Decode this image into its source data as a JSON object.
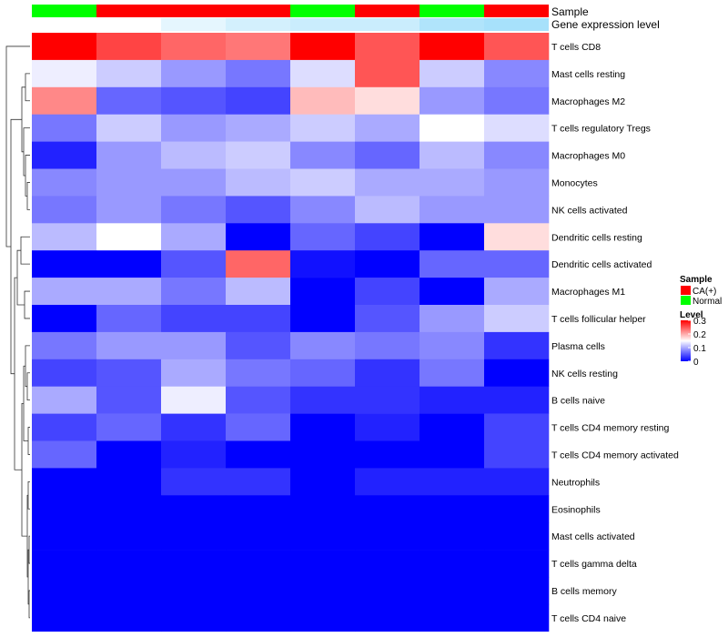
{
  "chart_data": {
    "type": "heatmap",
    "title": "",
    "annotation_rows": [
      "Sample",
      "Gene expression level"
    ],
    "sample_groups": [
      "Normal",
      "CA(+)",
      "CA(+)",
      "CA(+)",
      "Normal",
      "CA(+)",
      "Normal",
      "CA(+)"
    ],
    "expression_level": [
      0.0,
      0.0,
      0.15,
      0.25,
      0.3,
      0.3,
      0.45,
      0.5
    ],
    "rows": [
      "T cells CD8",
      "Mast cells resting",
      "Macrophages M2",
      "T cells regulatory  Tregs",
      "Macrophages M0",
      "Monocytes",
      "NK cells activated",
      "Dendritic cells resting",
      "Dendritic cells activated",
      "Macrophages M1",
      "T cells follicular helper",
      "Plasma cells",
      "NK cells resting",
      "B cells naive",
      "T cells CD4 memory resting",
      "T cells CD4 memory activated",
      "Neutrophils",
      "Eosinophils",
      "Mast cells activated",
      "T cells gamma delta",
      "B cells memory",
      "T cells CD4 naive"
    ],
    "values": [
      [
        0.3,
        0.26,
        0.24,
        0.23,
        0.3,
        0.25,
        0.3,
        0.25
      ],
      [
        0.14,
        0.12,
        0.09,
        0.07,
        0.13,
        0.25,
        0.12,
        0.08
      ],
      [
        0.22,
        0.06,
        0.05,
        0.04,
        0.19,
        0.17,
        0.09,
        0.07
      ],
      [
        0.07,
        0.12,
        0.09,
        0.1,
        0.12,
        0.1,
        0.15,
        0.13
      ],
      [
        0.02,
        0.09,
        0.11,
        0.12,
        0.08,
        0.06,
        0.11,
        0.08
      ],
      [
        0.08,
        0.09,
        0.09,
        0.11,
        0.12,
        0.1,
        0.1,
        0.09
      ],
      [
        0.07,
        0.09,
        0.07,
        0.05,
        0.08,
        0.11,
        0.09,
        0.09
      ],
      [
        0.11,
        0.15,
        0.1,
        0.0,
        0.06,
        0.04,
        0.0,
        0.17
      ],
      [
        0.0,
        0.0,
        0.05,
        0.24,
        0.01,
        0.0,
        0.06,
        0.06
      ],
      [
        0.1,
        0.1,
        0.07,
        0.11,
        0.0,
        0.04,
        0.0,
        0.1
      ],
      [
        0.0,
        0.06,
        0.04,
        0.04,
        0.0,
        0.05,
        0.09,
        0.12
      ],
      [
        0.07,
        0.09,
        0.09,
        0.05,
        0.08,
        0.07,
        0.08,
        0.03
      ],
      [
        0.04,
        0.05,
        0.1,
        0.07,
        0.06,
        0.03,
        0.07,
        0.0
      ],
      [
        0.1,
        0.05,
        0.14,
        0.05,
        0.03,
        0.03,
        0.02,
        0.02
      ],
      [
        0.04,
        0.06,
        0.03,
        0.06,
        0.0,
        0.02,
        0.0,
        0.04
      ],
      [
        0.06,
        0.0,
        0.02,
        0.0,
        0.0,
        0.0,
        0.0,
        0.04
      ],
      [
        0.0,
        0.0,
        0.03,
        0.03,
        0.0,
        0.02,
        0.02,
        0.02
      ],
      [
        0.0,
        0.0,
        0.0,
        0.0,
        0.0,
        0.0,
        0.0,
        0.0
      ],
      [
        0.0,
        0.0,
        0.0,
        0.0,
        0.0,
        0.0,
        0.0,
        0.0
      ],
      [
        0.0,
        0.0,
        0.0,
        0.0,
        0.0,
        0.0,
        0.0,
        0.0
      ],
      [
        0.0,
        0.0,
        0.0,
        0.0,
        0.0,
        0.0,
        0.0,
        0.0
      ],
      [
        0.0,
        0.0,
        0.0,
        0.0,
        0.0,
        0.0,
        0.0,
        0.0
      ]
    ],
    "color_scale": {
      "low": "#0000FF",
      "mid": "#ffffff",
      "high": "#FF0000",
      "min": 0,
      "mid_value": 0.15,
      "max": 0.3,
      "ticks": [
        0.3,
        0.2,
        0.1,
        0
      ]
    },
    "expression_scale": {
      "low": "#ffffff",
      "high": "#4FC3F7"
    },
    "legend": {
      "sample_title": "Sample",
      "sample_items": [
        {
          "label": "CA(+)",
          "color": "#FF0000"
        },
        {
          "label": "Normal",
          "color": "#00FF00"
        }
      ],
      "level_title": "Level",
      "level_tick_labels": [
        "0.3",
        "0.2",
        "0.1",
        "0"
      ]
    },
    "dendrogram": "row",
    "grid": false
  }
}
